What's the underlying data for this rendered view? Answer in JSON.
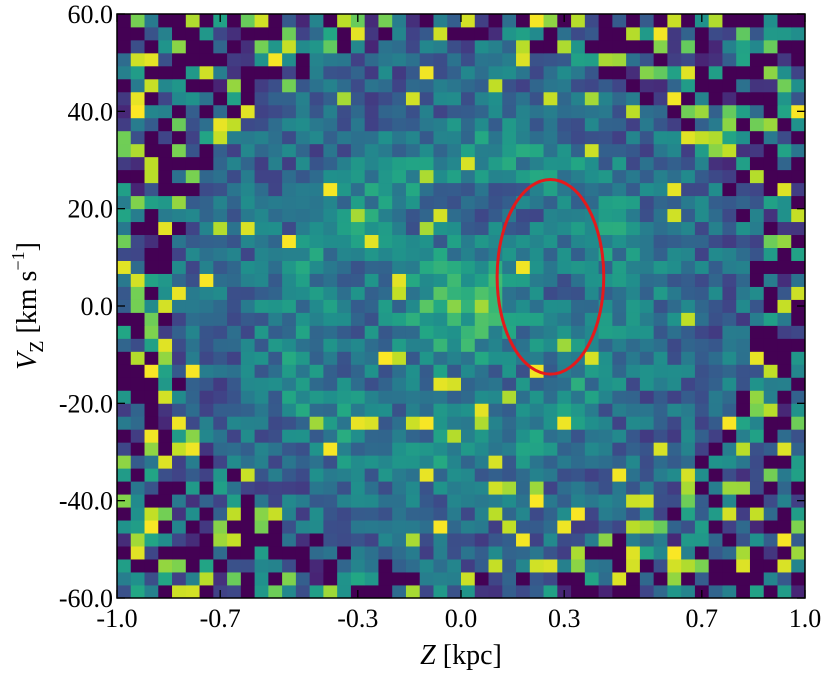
{
  "chart_data": {
    "type": "heatmap",
    "xlabel_var": "Z",
    "xlabel_unit": " [kpc]",
    "ylabel_var": "V",
    "ylabel_sub": "Z",
    "ylabel_unit_pre": " [km s",
    "ylabel_sup": "−1",
    "ylabel_unit_post": "]",
    "xlim": [
      -1.0,
      1.0
    ],
    "ylim": [
      -60.0,
      60.0
    ],
    "x_ticks": [
      -1.0,
      -0.7,
      -0.3,
      0.0,
      0.3,
      0.7,
      1.0
    ],
    "x_tick_labels": [
      "-1.0",
      "-0.7",
      "-0.3",
      "0.0",
      "0.3",
      "0.7",
      "1.0"
    ],
    "y_ticks": [
      -60.0,
      -40.0,
      -20.0,
      0.0,
      20.0,
      40.0,
      60.0
    ],
    "y_tick_labels": [
      "-60.0",
      "-40.0",
      "-20.0",
      "0.0",
      "20.0",
      "40.0",
      "60.0"
    ],
    "bins": {
      "nx": 50,
      "ny": 45
    },
    "colormap": "viridis",
    "background_color": "#440154",
    "density_description": "central density peak near Z=0, V_Z=0 with a ring-like spiral of enhanced counts; sparse noisy bins toward edges",
    "annotation": {
      "shape": "ellipse",
      "color": "#e41a1c",
      "center_x": 0.26,
      "center_y": 6.0,
      "half_width_x": 0.155,
      "half_height_y": 20.0
    }
  }
}
